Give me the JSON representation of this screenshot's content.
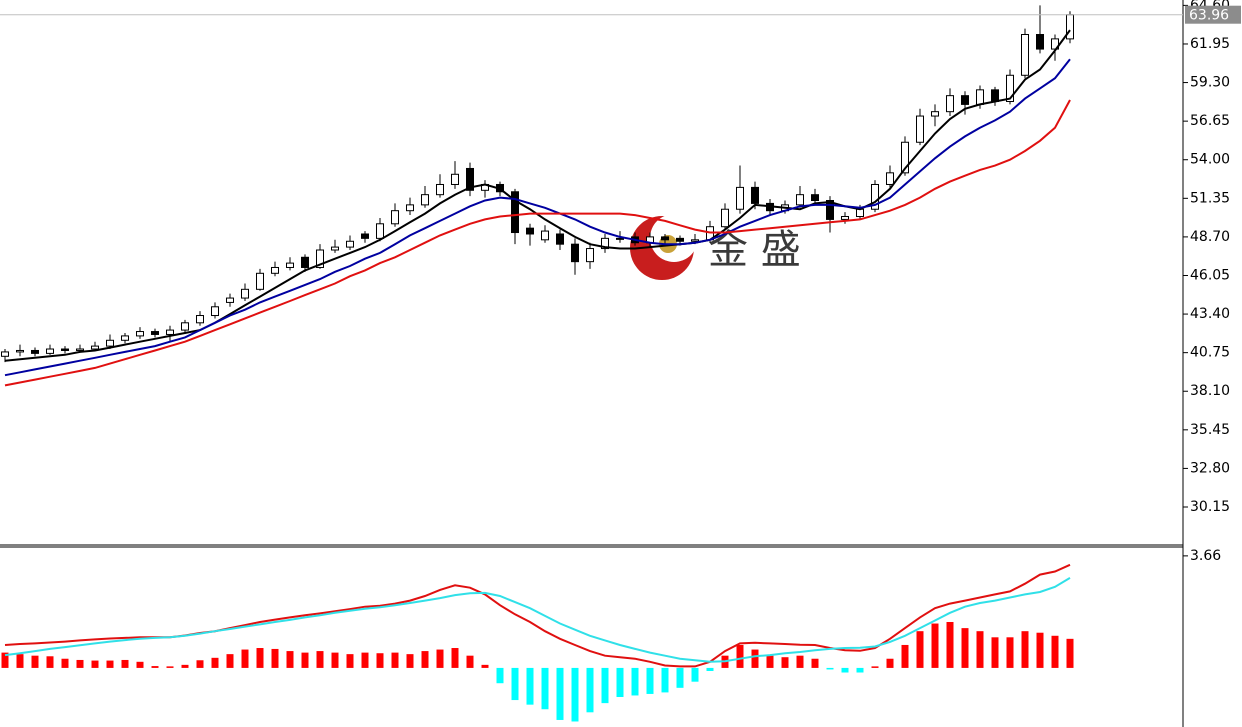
{
  "chart_data": [
    {
      "type": "candlestick",
      "ylim": [
        27.54,
        64.97
      ],
      "yticks": [
        {
          "value": 64.6,
          "label": "64.60"
        },
        61.95,
        {
          "value": 59.3,
          "label": "59.30"
        },
        56.65,
        {
          "value": 54,
          "label": "54.00"
        },
        51.35,
        {
          "value": 48.7,
          "label": "48.70"
        },
        46.05,
        {
          "value": 43.4,
          "label": "43.40"
        },
        40.75,
        {
          "value": 38.1,
          "label": "38.10"
        },
        35.45,
        {
          "value": 32.8,
          "label": "32.80"
        },
        30.15
      ],
      "last_price": 63.96,
      "up_color": "#ffffff",
      "down_color": "#000000",
      "watermark": "金 盛",
      "candles": [
        [
          40.5,
          41.0,
          40.1,
          40.8
        ],
        [
          40.8,
          41.3,
          40.5,
          40.9
        ],
        [
          40.9,
          41.1,
          40.5,
          40.7
        ],
        [
          40.7,
          41.3,
          40.6,
          41.0
        ],
        [
          41.0,
          41.2,
          40.7,
          40.9
        ],
        [
          40.9,
          41.3,
          40.8,
          41.0
        ],
        [
          41.0,
          41.5,
          40.9,
          41.2
        ],
        [
          41.2,
          42.0,
          41.0,
          41.6
        ],
        [
          41.6,
          42.1,
          41.4,
          41.9
        ],
        [
          41.9,
          42.5,
          41.7,
          42.2
        ],
        [
          42.2,
          42.4,
          41.8,
          42.0
        ],
        [
          42.0,
          42.6,
          41.5,
          42.3
        ],
        [
          42.3,
          43.0,
          42.1,
          42.8
        ],
        [
          42.8,
          43.6,
          42.6,
          43.3
        ],
        [
          43.3,
          44.2,
          43.1,
          43.9
        ],
        [
          44.2,
          44.8,
          43.9,
          44.5
        ],
        [
          44.5,
          45.5,
          44.3,
          45.1
        ],
        [
          45.1,
          46.5,
          45.0,
          46.2
        ],
        [
          46.2,
          47.0,
          46.0,
          46.6
        ],
        [
          46.6,
          47.3,
          46.4,
          46.9
        ],
        [
          47.3,
          47.5,
          46.3,
          46.6
        ],
        [
          46.6,
          48.2,
          46.5,
          47.8
        ],
        [
          47.8,
          48.5,
          47.6,
          48.0
        ],
        [
          48.0,
          48.8,
          47.8,
          48.4
        ],
        [
          48.9,
          49.1,
          48.3,
          48.6
        ],
        [
          48.6,
          50.0,
          48.4,
          49.6
        ],
        [
          49.6,
          51.0,
          49.4,
          50.5
        ],
        [
          50.5,
          51.4,
          50.2,
          50.9
        ],
        [
          50.9,
          52.2,
          50.7,
          51.6
        ],
        [
          51.6,
          53.0,
          51.4,
          52.3
        ],
        [
          52.3,
          53.9,
          52.0,
          53.0
        ],
        [
          53.4,
          53.8,
          51.5,
          51.9
        ],
        [
          51.9,
          52.6,
          51.4,
          52.3
        ],
        [
          52.3,
          52.5,
          51.5,
          51.8
        ],
        [
          51.8,
          52.0,
          48.2,
          49.0
        ],
        [
          49.3,
          49.6,
          48.1,
          48.9
        ],
        [
          48.5,
          49.5,
          48.3,
          49.1
        ],
        [
          48.9,
          49.2,
          47.8,
          48.2
        ],
        [
          48.2,
          48.6,
          46.1,
          47.0
        ],
        [
          47.0,
          48.3,
          46.5,
          47.9
        ],
        [
          47.9,
          48.9,
          47.6,
          48.6
        ],
        [
          48.6,
          49.1,
          48.3,
          48.6
        ],
        [
          48.7,
          49.0,
          48.1,
          48.3
        ],
        [
          48.3,
          49.0,
          48.0,
          48.7
        ],
        [
          48.7,
          48.9,
          48.1,
          48.5
        ],
        [
          48.6,
          48.8,
          48.1,
          48.4
        ],
        [
          48.4,
          48.9,
          48.2,
          48.5
        ],
        [
          48.5,
          49.8,
          48.3,
          49.4
        ],
        [
          49.4,
          51.0,
          49.2,
          50.6
        ],
        [
          50.6,
          53.6,
          50.3,
          52.1
        ],
        [
          52.1,
          52.5,
          50.6,
          51.0
        ],
        [
          51.0,
          51.3,
          50.2,
          50.5
        ],
        [
          50.5,
          51.2,
          50.3,
          50.9
        ],
        [
          50.9,
          52.2,
          50.7,
          51.6
        ],
        [
          51.6,
          52.0,
          50.9,
          51.2
        ],
        [
          51.2,
          51.5,
          49.0,
          49.9
        ],
        [
          49.9,
          50.4,
          49.6,
          50.1
        ],
        [
          50.1,
          50.9,
          49.9,
          50.6
        ],
        [
          50.6,
          52.6,
          50.4,
          52.3
        ],
        [
          52.3,
          53.6,
          52.0,
          53.1
        ],
        [
          53.1,
          55.6,
          52.9,
          55.2
        ],
        [
          55.2,
          57.5,
          55.0,
          57.0
        ],
        [
          57.0,
          57.8,
          56.3,
          57.3
        ],
        [
          57.3,
          58.9,
          57.0,
          58.4
        ],
        [
          58.4,
          58.7,
          57.1,
          57.8
        ],
        [
          57.8,
          59.1,
          57.5,
          58.8
        ],
        [
          58.8,
          59.0,
          57.7,
          58.0
        ],
        [
          58.0,
          60.2,
          57.8,
          59.8
        ],
        [
          59.8,
          63.0,
          59.6,
          62.6
        ],
        [
          62.6,
          64.6,
          61.3,
          61.6
        ],
        [
          61.6,
          62.6,
          60.8,
          62.3
        ],
        [
          62.3,
          64.2,
          62.0,
          63.96
        ]
      ],
      "series": [
        {
          "color": "#000000",
          "values": [
            40.2,
            40.3,
            40.4,
            40.5,
            40.6,
            40.8,
            40.9,
            41.1,
            41.3,
            41.5,
            41.7,
            41.9,
            42.1,
            42.3,
            42.8,
            43.4,
            44.0,
            44.6,
            45.2,
            45.8,
            46.4,
            46.8,
            47.2,
            47.6,
            48.0,
            48.5,
            49.1,
            49.7,
            50.3,
            51.0,
            51.6,
            52.1,
            52.3,
            52.0,
            51.2,
            50.6,
            49.9,
            49.3,
            48.7,
            48.2,
            48.0,
            47.9,
            47.9,
            48.0,
            48.1,
            48.2,
            48.3,
            48.5,
            49.2,
            50.0,
            50.9,
            50.8,
            50.7,
            50.6,
            51.0,
            51.1,
            50.8,
            50.6,
            51.1,
            52.0,
            53.4,
            54.6,
            55.8,
            56.8,
            57.5,
            57.8,
            58.0,
            58.2,
            59.5,
            60.2,
            61.5,
            62.9
          ]
        },
        {
          "color": "#0000a0",
          "values": [
            39.2,
            39.4,
            39.6,
            39.8,
            40.0,
            40.2,
            40.4,
            40.6,
            40.8,
            41.0,
            41.2,
            41.5,
            41.8,
            42.3,
            42.8,
            43.3,
            43.7,
            44.2,
            44.6,
            45.0,
            45.4,
            45.8,
            46.3,
            46.7,
            47.2,
            47.6,
            48.2,
            48.8,
            49.3,
            49.8,
            50.3,
            50.8,
            51.2,
            51.4,
            51.3,
            51.0,
            50.7,
            50.3,
            49.9,
            49.4,
            49.0,
            48.7,
            48.5,
            48.3,
            48.2,
            48.2,
            48.3,
            48.5,
            48.9,
            49.4,
            49.8,
            50.2,
            50.5,
            50.8,
            50.9,
            50.9,
            50.8,
            50.7,
            50.9,
            51.4,
            52.3,
            53.2,
            54.1,
            54.9,
            55.6,
            56.2,
            56.7,
            57.3,
            58.2,
            58.9,
            59.6,
            60.9
          ]
        },
        {
          "color": "#e01010",
          "values": [
            38.5,
            38.7,
            38.9,
            39.1,
            39.3,
            39.5,
            39.7,
            40.0,
            40.3,
            40.6,
            40.9,
            41.2,
            41.5,
            41.9,
            42.3,
            42.7,
            43.1,
            43.5,
            43.9,
            44.3,
            44.7,
            45.1,
            45.5,
            46.0,
            46.4,
            46.9,
            47.3,
            47.8,
            48.3,
            48.8,
            49.2,
            49.6,
            49.9,
            50.1,
            50.2,
            50.3,
            50.3,
            50.3,
            50.3,
            50.3,
            50.3,
            50.3,
            50.2,
            50.0,
            49.8,
            49.5,
            49.2,
            49.0,
            49.0,
            49.1,
            49.2,
            49.3,
            49.4,
            49.5,
            49.6,
            49.7,
            49.8,
            49.9,
            50.2,
            50.5,
            50.9,
            51.4,
            52.0,
            52.5,
            52.9,
            53.3,
            53.6,
            54.0,
            54.6,
            55.3,
            56.2,
            58.1
          ]
        }
      ]
    },
    {
      "type": "macd",
      "ylim": [
        -1.93,
        3.95
      ],
      "yticks": [
        3.66
      ],
      "histogram": {
        "color": "#ff0000",
        "negative_color": "#00ffff",
        "values": [
          0.5,
          0.45,
          0.4,
          0.38,
          0.3,
          0.26,
          0.24,
          0.24,
          0.26,
          0.2,
          0.06,
          0.05,
          0.1,
          0.25,
          0.33,
          0.45,
          0.6,
          0.65,
          0.62,
          0.55,
          0.5,
          0.55,
          0.5,
          0.45,
          0.5,
          0.48,
          0.5,
          0.45,
          0.55,
          0.6,
          0.65,
          0.4,
          0.1,
          -0.5,
          -1.05,
          -1.2,
          -1.35,
          -1.7,
          -1.75,
          -1.45,
          -1.15,
          -0.95,
          -0.9,
          -0.85,
          -0.8,
          -0.65,
          -0.45,
          -0.1,
          0.4,
          0.75,
          0.6,
          0.4,
          0.35,
          0.4,
          0.3,
          -0.05,
          -0.15,
          -0.15,
          0.05,
          0.3,
          0.75,
          1.2,
          1.45,
          1.5,
          1.3,
          1.2,
          1.0,
          1.0,
          1.2,
          1.15,
          1.05,
          0.95
        ]
      },
      "series": [
        {
          "color": "#e01010",
          "values": [
            0.75,
            0.78,
            0.8,
            0.83,
            0.86,
            0.9,
            0.93,
            0.96,
            0.98,
            1.0,
            1.0,
            1.0,
            1.06,
            1.14,
            1.2,
            1.3,
            1.4,
            1.5,
            1.58,
            1.65,
            1.72,
            1.78,
            1.85,
            1.92,
            2.0,
            2.03,
            2.1,
            2.2,
            2.35,
            2.55,
            2.7,
            2.62,
            2.4,
            2.05,
            1.75,
            1.5,
            1.2,
            0.95,
            0.75,
            0.55,
            0.4,
            0.35,
            0.3,
            0.2,
            0.08,
            0.05,
            0.05,
            0.2,
            0.55,
            0.8,
            0.82,
            0.8,
            0.78,
            0.76,
            0.75,
            0.65,
            0.58,
            0.56,
            0.65,
            0.95,
            1.3,
            1.65,
            1.95,
            2.1,
            2.2,
            2.3,
            2.4,
            2.5,
            2.75,
            3.05,
            3.15,
            3.37
          ]
        },
        {
          "color": "#30e0e8",
          "values": [
            0.42,
            0.48,
            0.55,
            0.62,
            0.68,
            0.74,
            0.8,
            0.86,
            0.91,
            0.95,
            0.98,
            1.0,
            1.05,
            1.12,
            1.2,
            1.27,
            1.35,
            1.42,
            1.5,
            1.57,
            1.65,
            1.72,
            1.8,
            1.87,
            1.93,
            1.98,
            2.05,
            2.12,
            2.2,
            2.28,
            2.38,
            2.44,
            2.45,
            2.35,
            2.15,
            1.95,
            1.7,
            1.45,
            1.25,
            1.05,
            0.9,
            0.75,
            0.62,
            0.5,
            0.4,
            0.3,
            0.25,
            0.2,
            0.22,
            0.3,
            0.38,
            0.42,
            0.48,
            0.52,
            0.58,
            0.62,
            0.65,
            0.66,
            0.7,
            0.85,
            1.05,
            1.3,
            1.55,
            1.8,
            2.0,
            2.12,
            2.2,
            2.3,
            2.4,
            2.48,
            2.65,
            2.94
          ]
        }
      ]
    }
  ]
}
